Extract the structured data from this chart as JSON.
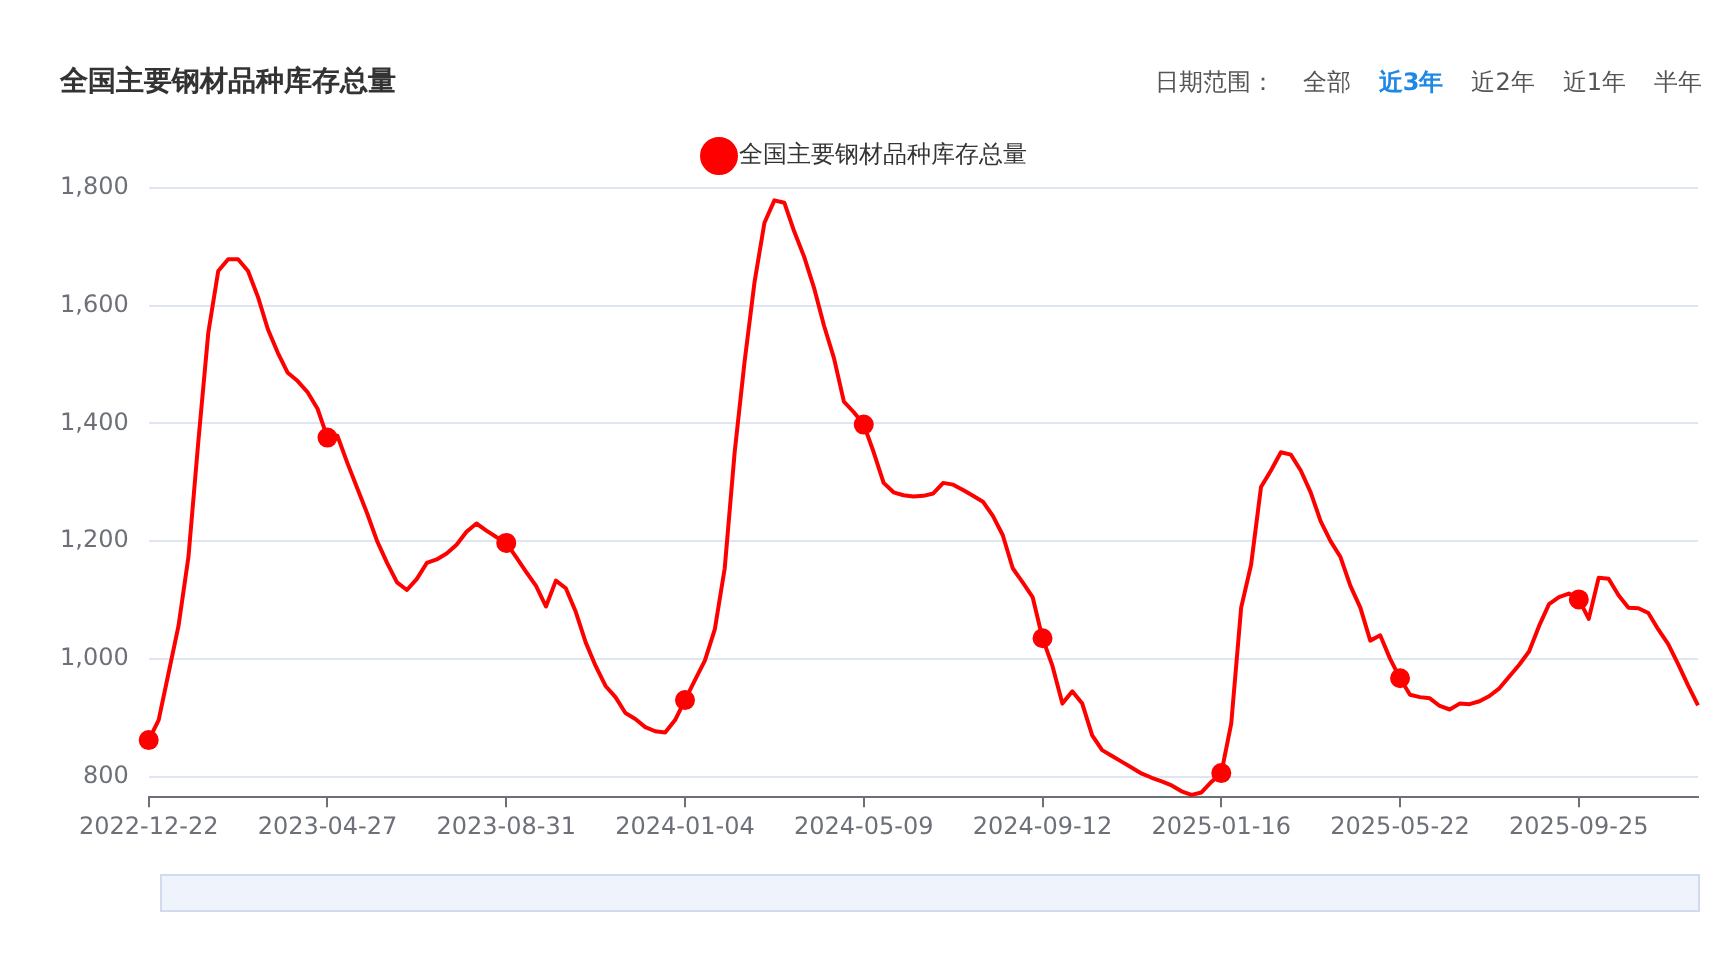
{
  "chart_data": {
    "type": "line",
    "title": "全国主要钢材品种库存总量",
    "annotations": [
      "日期范围：",
      "全部",
      "近3年",
      "近2年",
      "近1年",
      "半年"
    ],
    "categories": [
      "2022-12-22",
      null,
      null,
      null,
      null,
      null,
      null,
      null,
      null,
      null,
      null,
      null,
      null,
      null,
      null,
      null,
      null,
      null,
      "2023-04-27",
      null,
      null,
      null,
      null,
      null,
      null,
      null,
      null,
      null,
      null,
      null,
      null,
      null,
      null,
      null,
      null,
      null,
      "2023-08-31",
      null,
      null,
      null,
      null,
      null,
      null,
      null,
      null,
      null,
      null,
      null,
      null,
      null,
      null,
      null,
      null,
      null,
      "2024-01-04",
      null,
      null,
      null,
      null,
      null,
      null,
      null,
      null,
      null,
      null,
      null,
      null,
      null,
      null,
      null,
      null,
      null,
      "2024-05-09",
      null,
      null,
      null,
      null,
      null,
      null,
      null,
      null,
      null,
      null,
      null,
      null,
      null,
      null,
      null,
      null,
      null,
      "2024-09-12",
      null,
      null,
      null,
      null,
      null,
      null,
      null,
      null,
      null,
      null,
      null,
      null,
      null,
      null,
      null,
      null,
      null,
      "2025-01-16",
      null,
      null,
      null,
      null,
      null,
      null,
      null,
      null,
      null,
      null,
      null,
      null,
      null,
      null,
      null,
      null,
      null,
      "2025-05-22",
      null,
      null,
      null,
      null,
      null,
      null,
      null,
      null,
      null,
      null,
      null,
      null,
      null,
      null,
      null,
      null,
      null,
      "2025-09-25",
      null,
      null,
      null,
      null,
      null,
      null,
      null,
      null,
      null,
      null,
      null,
      null
    ],
    "series": [
      {
        "name": "全国主要钢材品种库存总量",
        "color": "#ff0000",
        "values": [
          862,
          896,
          976,
          1056,
          1173,
          1370,
          1554,
          1659,
          1679,
          1679,
          1659,
          1615,
          1560,
          1520,
          1486,
          1472,
          1453,
          1425,
          1376,
          1379,
          1333,
          1290,
          1247,
          1200,
          1163,
          1130,
          1117,
          1136,
          1163,
          1169,
          1179,
          1194,
          1216,
          1230,
          1218,
          1207,
          1197,
          1173,
          1148,
          1124,
          1089,
          1133,
          1120,
          1080,
          1028,
          988,
          954,
          935,
          908,
          898,
          884,
          877,
          875,
          896,
          930,
          964,
          997,
          1050,
          1154,
          1351,
          1505,
          1640,
          1741,
          1779,
          1775,
          1726,
          1683,
          1630,
          1566,
          1511,
          1437,
          1419,
          1398,
          1351,
          1299,
          1283,
          1278,
          1276,
          1277,
          1281,
          1299,
          1296,
          1287,
          1277,
          1267,
          1243,
          1210,
          1154,
          1130,
          1105,
          1035,
          988,
          924,
          945,
          924,
          870,
          845,
          835,
          825,
          815,
          805,
          798,
          792,
          785,
          775,
          769,
          773,
          791,
          806,
          890,
          1087,
          1160,
          1292,
          1320,
          1351,
          1347,
          1320,
          1283,
          1234,
          1200,
          1173,
          1124,
          1087,
          1031,
          1040,
          1000,
          967,
          939,
          935,
          933,
          920,
          914,
          924,
          923,
          928,
          937,
          950,
          970,
          990,
          1013,
          1056,
          1093,
          1105,
          1111,
          1101,
          1068,
          1138,
          1136,
          1108,
          1087,
          1086,
          1078,
          1050,
          1025,
          991,
          955,
          921
        ]
      }
    ],
    "ylim": [
      765,
      1800
    ],
    "yticks": [
      800,
      {
        "value": 1000,
        "label": "1,000"
      },
      {
        "value": 1200,
        "label": "1,200"
      },
      {
        "value": 1400,
        "label": "1,400"
      },
      {
        "value": 1600,
        "label": "1,600"
      },
      {
        "value": 1800,
        "label": "1,800"
      }
    ],
    "grid": "y",
    "legend": "top",
    "line_style": "solid"
  }
}
